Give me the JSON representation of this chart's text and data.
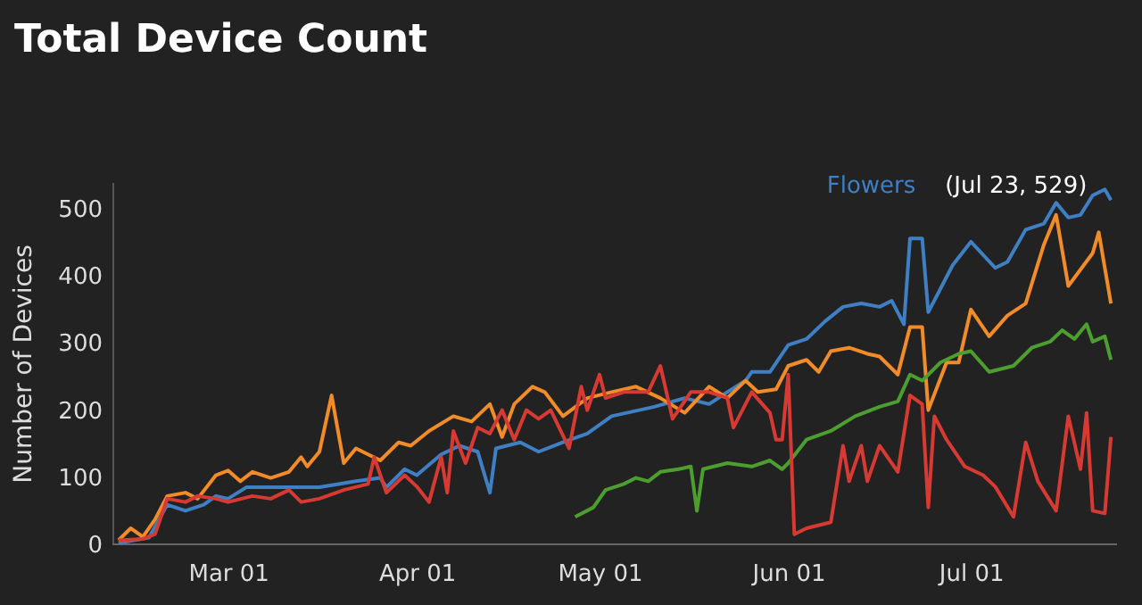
{
  "chart_data": {
    "type": "line",
    "title": "Total Device Count",
    "ylabel": "Number of Devices",
    "xlim": [
      "--02-10",
      "--07-25"
    ],
    "xticks": [
      {
        "value": "--03-01",
        "label": "Mar 01"
      },
      {
        "value": "--04-01",
        "label": "Apr 01"
      },
      {
        "value": "--05-01",
        "label": "May 01"
      },
      {
        "value": "--06-01",
        "label": "Jun 01"
      },
      {
        "value": "--07-01",
        "label": "Jul 01"
      }
    ],
    "ylim": [
      0,
      540
    ],
    "yticks": [
      0,
      100,
      200,
      300,
      400,
      500
    ],
    "grid": false,
    "legend": false,
    "line_style": "solid",
    "marker": "none",
    "annotations": [
      {
        "text": "(Jul 23, 529)",
        "x": "--07-23",
        "y": 529
      }
    ],
    "series": [
      {
        "name": "Flowers",
        "color": "#3f7fc4",
        "x": [
          "--02-11",
          "--02-16",
          "--02-19",
          "--02-22",
          "--02-25",
          "--02-27",
          "--03-01",
          "--03-04",
          "--03-08",
          "--03-13",
          "--03-16",
          "--03-22",
          "--03-26",
          "--03-27",
          "--03-30",
          "--04-01",
          "--04-05",
          "--04-08",
          "--04-11",
          "--04-13",
          "--04-14",
          "--04-18",
          "--04-21",
          "--04-25",
          "--04-29",
          "--05-03",
          "--05-10",
          "--05-15",
          "--05-19",
          "--05-22",
          "--05-25",
          "--05-26",
          "--05-29",
          "--06-01",
          "--06-04",
          "--06-07",
          "--06-10",
          "--06-13",
          "--06-16",
          "--06-18",
          "--06-20",
          "--06-21",
          "--06-23",
          "--06-24",
          "--06-28",
          "--07-01",
          "--07-05",
          "--07-07",
          "--07-10",
          "--07-13",
          "--07-15",
          "--07-17",
          "--07-19",
          "--07-21",
          "--07-23",
          "--07-24"
        ],
        "values": [
          2,
          10,
          59,
          50,
          59,
          72,
          68,
          85,
          85,
          85,
          85,
          94,
          99,
          85,
          112,
          103,
          134,
          147,
          138,
          77,
          143,
          152,
          138,
          152,
          165,
          191,
          205,
          218,
          209,
          227,
          244,
          257,
          257,
          297,
          306,
          332,
          354,
          359,
          354,
          363,
          328,
          456,
          456,
          346,
          416,
          451,
          412,
          421,
          469,
          478,
          509,
          487,
          491,
          520,
          529,
          513
        ]
      },
      {
        "color": "#f28c28",
        "x": [
          "--02-11",
          "--02-13",
          "--02-15",
          "--02-17",
          "--02-19",
          "--02-22",
          "--02-24",
          "--02-27",
          "--03-01",
          "--03-03",
          "--03-05",
          "--03-08",
          "--03-11",
          "--03-13",
          "--03-14",
          "--03-16",
          "--03-18",
          "--03-20",
          "--03-22",
          "--03-24",
          "--03-26",
          "--03-29",
          "--03-31",
          "--04-03",
          "--04-07",
          "--04-10",
          "--04-13",
          "--04-15",
          "--04-17",
          "--04-20",
          "--04-22",
          "--04-25",
          "--04-29",
          "--05-03",
          "--05-07",
          "--05-11",
          "--05-15",
          "--05-19",
          "--05-22",
          "--05-25",
          "--05-27",
          "--05-30",
          "--06-01",
          "--06-04",
          "--06-06",
          "--06-08",
          "--06-11",
          "--06-14",
          "--06-16",
          "--06-19",
          "--06-21",
          "--06-23",
          "--06-24",
          "--06-27",
          "--06-29",
          "--07-01",
          "--07-04",
          "--07-07",
          "--07-10",
          "--07-13",
          "--07-15",
          "--07-17",
          "--07-21",
          "--07-22",
          "--07-24"
        ],
        "values": [
          6,
          24,
          11,
          37,
          72,
          77,
          68,
          103,
          110,
          94,
          108,
          99,
          108,
          130,
          116,
          138,
          222,
          121,
          143,
          134,
          125,
          152,
          147,
          169,
          191,
          183,
          209,
          160,
          209,
          235,
          227,
          191,
          218,
          227,
          235,
          218,
          196,
          235,
          218,
          244,
          227,
          231,
          266,
          275,
          257,
          288,
          293,
          284,
          280,
          253,
          324,
          324,
          200,
          271,
          271,
          350,
          310,
          341,
          359,
          447,
          491,
          385,
          434,
          465,
          359
        ]
      },
      {
        "color": "#4c9f2f",
        "x": [
          "--04-27",
          "--04-30",
          "--05-02",
          "--05-05",
          "--05-07",
          "--05-09",
          "--05-11",
          "--05-14",
          "--05-16",
          "--05-17",
          "--05-18",
          "--05-22",
          "--05-26",
          "--05-29",
          "--05-31",
          "--06-01",
          "--06-04",
          "--06-08",
          "--06-12",
          "--06-16",
          "--06-19",
          "--06-21",
          "--06-23",
          "--06-26",
          "--06-29",
          "--07-01",
          "--07-04",
          "--07-08",
          "--07-11",
          "--07-14",
          "--07-16",
          "--07-18",
          "--07-20",
          "--07-21",
          "--07-23",
          "--07-24"
        ],
        "values": [
          41,
          55,
          81,
          90,
          99,
          94,
          108,
          112,
          116,
          50,
          112,
          121,
          116,
          125,
          112,
          121,
          156,
          169,
          191,
          205,
          213,
          253,
          244,
          271,
          284,
          288,
          257,
          266,
          293,
          302,
          319,
          306,
          328,
          302,
          310,
          275
        ]
      },
      {
        "color": "#d63a32",
        "x": [
          "--02-11",
          "--02-15",
          "--02-17",
          "--02-19",
          "--02-22",
          "--02-24",
          "--02-27",
          "--03-01",
          "--03-05",
          "--03-08",
          "--03-11",
          "--03-13",
          "--03-16",
          "--03-20",
          "--03-24",
          "--03-25",
          "--03-27",
          "--03-30",
          "--04-01",
          "--04-03",
          "--04-05",
          "--04-06",
          "--04-07",
          "--04-09",
          "--04-11",
          "--04-13",
          "--04-15",
          "--04-17",
          "--04-19",
          "--04-21",
          "--04-23",
          "--04-26",
          "--04-28",
          "--04-29",
          "--05-01",
          "--05-02",
          "--05-05",
          "--05-09",
          "--05-11",
          "--05-13",
          "--05-16",
          "--05-19",
          "--05-22",
          "--05-23",
          "--05-26",
          "--05-29",
          "--05-30",
          "--05-31",
          "--06-01",
          "--06-02",
          "--06-04",
          "--06-08",
          "--06-10",
          "--06-11",
          "--06-13",
          "--06-14",
          "--06-16",
          "--06-19",
          "--06-21",
          "--06-23",
          "--06-24",
          "--06-25",
          "--06-27",
          "--06-30",
          "--07-03",
          "--07-05",
          "--07-08",
          "--07-10",
          "--07-12",
          "--07-15",
          "--07-17",
          "--07-19",
          "--07-20",
          "--07-21",
          "--07-23",
          "--07-24"
        ],
        "values": [
          6,
          8,
          15,
          68,
          63,
          72,
          68,
          63,
          72,
          68,
          81,
          63,
          68,
          81,
          90,
          130,
          77,
          103,
          86,
          63,
          130,
          77,
          169,
          121,
          174,
          165,
          200,
          156,
          200,
          187,
          200,
          143,
          235,
          200,
          253,
          218,
          227,
          227,
          266,
          187,
          227,
          227,
          218,
          174,
          227,
          196,
          156,
          156,
          253,
          15,
          24,
          33,
          147,
          94,
          147,
          94,
          147,
          108,
          222,
          209,
          55,
          191,
          156,
          116,
          103,
          86,
          41,
          152,
          94,
          50,
          191,
          112,
          196,
          50,
          46,
          160
        ]
      }
    ]
  }
}
